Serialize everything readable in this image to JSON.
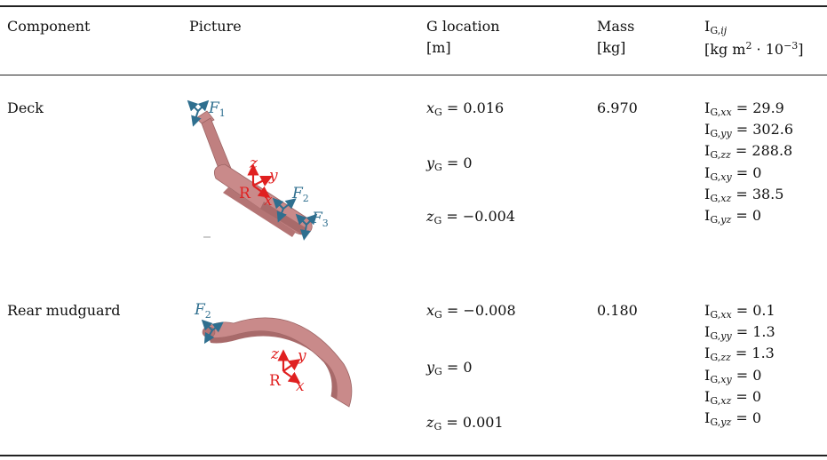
{
  "headers": {
    "component": "Component",
    "picture": "Picture",
    "g_location_line1": "G location",
    "g_location_line2": "[m]",
    "mass_line1": "Mass",
    "mass_line2": "[kg]",
    "inertia_line1_base": "I",
    "inertia_line1_sub_G": "G,",
    "inertia_line1_sub_ij": "ij",
    "inertia_line2_pre": "[kg m",
    "inertia_line2_sup": "2",
    "inertia_line2_mid": " · 10",
    "inertia_line2_sup2": "−3",
    "inertia_line2_post": "]"
  },
  "rows": [
    {
      "component": "Deck",
      "x_label": "x",
      "y_label": "y",
      "z_label": "z",
      "G_sub": "G",
      "x_value": " = 0.016",
      "y_value": " = 0",
      "z_value": " = −0.004",
      "mass": "6.970",
      "inertia": [
        {
          "sub_plain": "G,",
          "sub_ital": "xx",
          "value": " = 29.9"
        },
        {
          "sub_plain": "G,",
          "sub_ital": "yy",
          "value": " = 302.6"
        },
        {
          "sub_plain": "G,",
          "sub_ital": "zz",
          "value": " = 288.8"
        },
        {
          "sub_plain": "G,",
          "sub_ital": "xy",
          "value": " = 0"
        },
        {
          "sub_plain": "G,",
          "sub_ital": "xz",
          "value": " = 38.5"
        },
        {
          "sub_plain": "G,",
          "sub_ital": "yz",
          "value": " = 0"
        }
      ],
      "picture_labels": {
        "F1": "F",
        "F1_sub": "1",
        "F2": "F",
        "F2_sub": "2",
        "F3": "F",
        "F3_sub": "3",
        "R": "R",
        "x": "x",
        "y": "y",
        "z": "z"
      }
    },
    {
      "component": "Rear mudguard",
      "x_label": "x",
      "y_label": "y",
      "z_label": "z",
      "G_sub": "G",
      "x_value": " = −0.008",
      "y_value": " = 0",
      "z_value": " = 0.001",
      "mass": "0.180",
      "inertia": [
        {
          "sub_plain": "G,",
          "sub_ital": "xx",
          "value": " = 0.1"
        },
        {
          "sub_plain": "G,",
          "sub_ital": "yy",
          "value": " = 1.3"
        },
        {
          "sub_plain": "G,",
          "sub_ital": "zz",
          "value": " = 1.3"
        },
        {
          "sub_plain": "G,",
          "sub_ital": "xy",
          "value": " = 0"
        },
        {
          "sub_plain": "G,",
          "sub_ital": "xz",
          "value": " = 0"
        },
        {
          "sub_plain": "G,",
          "sub_ital": "yz",
          "value": " = 0"
        }
      ],
      "picture_labels": {
        "F2": "F",
        "F2_sub": "2",
        "R": "R",
        "x": "x",
        "y": "y",
        "z": "z"
      }
    }
  ],
  "colors": {
    "force_blue": "#2f6f8f",
    "frame_red": "#e02020",
    "part_pink": "#c98a8a",
    "part_dark": "#a86a6a"
  }
}
